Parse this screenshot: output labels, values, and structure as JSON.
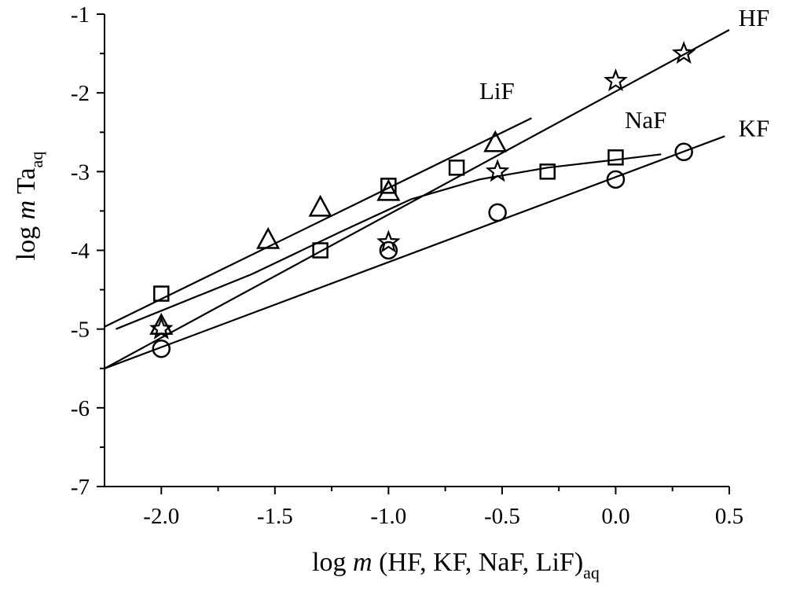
{
  "chart_data": {
    "type": "scatter",
    "title": "",
    "xlabel": {
      "pre": "log ",
      "ital": "m",
      "post": " (HF, KF, NaF, LiF)",
      "sub": "aq"
    },
    "ylabel": {
      "pre": "log ",
      "ital": "m",
      "post": " Ta",
      "sub": "aq"
    },
    "xlim": [
      -2.25,
      0.5
    ],
    "ylim": [
      -7,
      -1
    ],
    "xticks": [
      -2.0,
      -1.5,
      -1.0,
      -0.5,
      0.0,
      0.5
    ],
    "xtick_labels": [
      "-2.0",
      "-1.5",
      "-1.0",
      "-0.5",
      "0.0",
      "0.5"
    ],
    "yticks": [
      -7,
      -6,
      -5,
      -4,
      -3,
      -2,
      -1
    ],
    "ytick_labels": [
      "-7",
      "-6",
      "-5",
      "-4",
      "-3",
      "-2",
      "-1"
    ],
    "grid": false,
    "series": [
      {
        "name": "HF",
        "marker": "star",
        "points": [
          [
            -2.0,
            -5.0
          ],
          [
            -1.0,
            -3.9
          ],
          [
            -0.52,
            -3.0
          ],
          [
            0.0,
            -1.85
          ],
          [
            0.3,
            -1.5
          ]
        ],
        "fit_line": [
          [
            -2.25,
            -5.5
          ],
          [
            0.5,
            -1.2
          ]
        ],
        "label_pos": [
          0.54,
          -1.15
        ]
      },
      {
        "name": "KF",
        "marker": "circle",
        "points": [
          [
            -2.0,
            -5.25
          ],
          [
            -1.0,
            -4.0
          ],
          [
            -0.52,
            -3.52
          ],
          [
            0.0,
            -3.1
          ],
          [
            0.3,
            -2.75
          ]
        ],
        "fit_line": [
          [
            -2.25,
            -5.5
          ],
          [
            0.48,
            -2.55
          ]
        ],
        "label_pos": [
          0.54,
          -2.55
        ]
      },
      {
        "name": "NaF",
        "marker": "square",
        "points": [
          [
            -2.0,
            -4.55
          ],
          [
            -1.3,
            -4.0
          ],
          [
            -1.0,
            -3.18
          ],
          [
            -0.7,
            -2.95
          ],
          [
            -0.3,
            -3.0
          ],
          [
            0.0,
            -2.82
          ]
        ],
        "fit_line": [
          [
            -2.2,
            -5.0
          ],
          [
            -1.6,
            -4.3
          ],
          [
            -1.2,
            -3.75
          ],
          [
            -0.9,
            -3.35
          ],
          [
            -0.6,
            -3.1
          ],
          [
            -0.3,
            -2.95
          ],
          [
            0.0,
            -2.85
          ],
          [
            0.2,
            -2.78
          ]
        ],
        "label_pos": [
          0.04,
          -2.45
        ]
      },
      {
        "name": "LiF",
        "marker": "triangle",
        "points": [
          [
            -2.0,
            -4.97
          ],
          [
            -1.53,
            -3.88
          ],
          [
            -1.3,
            -3.47
          ],
          [
            -1.0,
            -3.27
          ],
          [
            -0.53,
            -2.65
          ]
        ],
        "fit_line": [
          [
            -2.25,
            -4.97
          ],
          [
            -0.37,
            -2.32
          ]
        ],
        "label_pos": [
          -0.6,
          -2.08
        ]
      }
    ]
  }
}
